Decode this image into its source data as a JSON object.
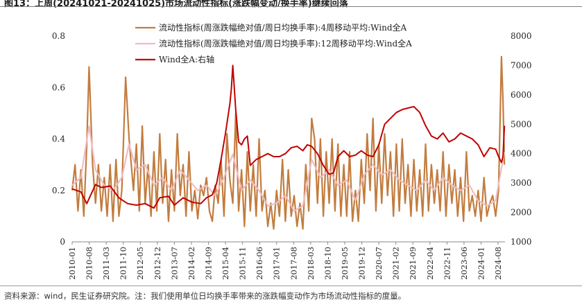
{
  "title": "图13：上周(20241021-20241025)市场流动性指标(涨跌幅变动/换手率)继续回落",
  "source": "资料来源：wind，民生证券研究院。注：我们使用单位日均换手率带来的涨跌幅变动作为市场流动性指标的度量。",
  "colors": {
    "ma4": "#c27c3e",
    "ma12": "#efbcc0",
    "wind": "#c00000"
  },
  "chart_data": {
    "type": "line",
    "legend": [
      "流动性指标(周涨跌幅绝对值/周日均换手率):4周移动平均:Wind全A",
      "流动性指标(周涨跌幅绝对值/周日均换手率):12周移动平均:Wind全A",
      "Wind全A:右轴"
    ],
    "legend_position": "top-center",
    "ylim_left": [
      0,
      0.8
    ],
    "yticks_left": [
      "0",
      "0.2",
      "0.4",
      "0.6",
      "0.8"
    ],
    "ylim_right": [
      1000,
      8000
    ],
    "yticks_right": [
      "1000",
      "2000",
      "3000",
      "4000",
      "5000",
      "6000",
      "7000",
      "8000"
    ],
    "x_ticks": [
      "2010-01",
      "2010-08",
      "2011-03",
      "2011-10",
      "2012-05",
      "2012-12",
      "2013-07",
      "2014-02",
      "2014-09",
      "2015-04",
      "2015-11",
      "2016-06",
      "2017-01",
      "2017-08",
      "2018-03",
      "2018-10",
      "2019-05",
      "2019-12",
      "2020-07",
      "2021-02",
      "2021-09",
      "2022-04",
      "2022-11",
      "2023-06",
      "2024-01",
      "2024-08"
    ],
    "x_range": [
      "2010-01",
      "2024-10"
    ],
    "grid": false,
    "series": [
      {
        "name": "流动性指标(周涨跌幅绝对值/周日均换手率):4周移动平均:Wind全A",
        "axis": "left",
        "x": [
          2010.0,
          2010.1,
          2010.2,
          2010.3,
          2010.4,
          2010.5,
          2010.58,
          2010.7,
          2010.8,
          2010.9,
          2011.0,
          2011.1,
          2011.2,
          2011.3,
          2011.4,
          2011.5,
          2011.6,
          2011.7,
          2011.83,
          2011.95,
          2012.1,
          2012.2,
          2012.3,
          2012.4,
          2012.5,
          2012.6,
          2012.7,
          2012.8,
          2012.9,
          2013.0,
          2013.1,
          2013.2,
          2013.3,
          2013.4,
          2013.5,
          2013.6,
          2013.7,
          2013.8,
          2013.9,
          2014.0,
          2014.1,
          2014.2,
          2014.3,
          2014.4,
          2014.5,
          2014.6,
          2014.7,
          2014.8,
          2014.9,
          2015.0,
          2015.1,
          2015.2,
          2015.3,
          2015.4,
          2015.5,
          2015.6,
          2015.7,
          2015.8,
          2015.9,
          2016.0,
          2016.1,
          2016.2,
          2016.3,
          2016.4,
          2016.5,
          2016.6,
          2016.7,
          2016.8,
          2016.9,
          2017.0,
          2017.1,
          2017.2,
          2017.3,
          2017.4,
          2017.5,
          2017.6,
          2017.7,
          2017.8,
          2017.9,
          2018.0,
          2018.1,
          2018.2,
          2018.3,
          2018.4,
          2018.5,
          2018.6,
          2018.7,
          2018.8,
          2018.9,
          2019.0,
          2019.1,
          2019.2,
          2019.3,
          2019.4,
          2019.5,
          2019.6,
          2019.7,
          2019.8,
          2019.9,
          2020.0,
          2020.1,
          2020.2,
          2020.3,
          2020.4,
          2020.5,
          2020.6,
          2020.7,
          2020.8,
          2020.9,
          2021.0,
          2021.1,
          2021.2,
          2021.3,
          2021.4,
          2021.5,
          2021.6,
          2021.7,
          2021.8,
          2021.9,
          2022.0,
          2022.1,
          2022.2,
          2022.3,
          2022.4,
          2022.5,
          2022.6,
          2022.7,
          2022.8,
          2022.9,
          2023.0,
          2023.1,
          2023.2,
          2023.3,
          2023.4,
          2023.5,
          2023.6,
          2023.7,
          2023.8,
          2023.9,
          2024.0,
          2024.1,
          2024.2,
          2024.3,
          2024.4,
          2024.5,
          2024.6,
          2024.7,
          2024.75,
          2024.8
        ],
        "values": [
          0.2,
          0.3,
          0.12,
          0.28,
          0.1,
          0.38,
          0.68,
          0.3,
          0.15,
          0.3,
          0.12,
          0.25,
          0.1,
          0.3,
          0.08,
          0.32,
          0.1,
          0.2,
          0.64,
          0.4,
          0.2,
          0.38,
          0.12,
          0.45,
          0.15,
          0.3,
          0.1,
          0.35,
          0.12,
          0.42,
          0.15,
          0.32,
          0.08,
          0.28,
          0.12,
          0.42,
          0.18,
          0.3,
          0.1,
          0.35,
          0.12,
          0.2,
          0.09,
          0.22,
          0.18,
          0.25,
          0.12,
          0.08,
          0.22,
          0.15,
          0.32,
          0.1,
          0.42,
          0.24,
          0.15,
          0.5,
          0.12,
          0.28,
          0.06,
          0.35,
          0.12,
          0.3,
          0.1,
          0.4,
          0.12,
          0.2,
          0.06,
          0.15,
          0.05,
          0.2,
          0.1,
          0.32,
          0.08,
          0.28,
          0.1,
          0.18,
          0.06,
          0.15,
          0.05,
          0.3,
          0.12,
          0.48,
          0.4,
          0.15,
          0.4,
          0.1,
          0.35,
          0.15,
          0.4,
          0.12,
          0.38,
          0.1,
          0.3,
          0.1,
          0.35,
          0.08,
          0.2,
          0.08,
          0.32,
          0.15,
          0.42,
          0.2,
          0.48,
          0.12,
          0.38,
          0.15,
          0.42,
          0.18,
          0.35,
          0.1,
          0.38,
          0.12,
          0.4,
          0.15,
          0.3,
          0.1,
          0.32,
          0.12,
          0.28,
          0.1,
          0.38,
          0.12,
          0.3,
          0.15,
          0.28,
          0.12,
          0.35,
          0.1,
          0.3,
          0.15,
          0.28,
          0.1,
          0.25,
          0.08,
          0.35,
          0.12,
          0.18,
          0.1,
          0.2,
          0.08,
          0.25,
          0.1,
          0.15,
          0.18,
          0.1,
          0.2,
          0.72,
          0.55,
          0.3
        ]
      },
      {
        "name": "流动性指标(周涨跌幅绝对值/周日均换手率):12周移动平均:Wind全A",
        "axis": "left",
        "x": [
          2010.0,
          2010.3,
          2010.58,
          2010.8,
          2011.1,
          2011.4,
          2011.7,
          2011.95,
          2012.2,
          2012.5,
          2012.8,
          2013.1,
          2013.4,
          2013.7,
          2014.0,
          2014.3,
          2014.6,
          2014.9,
          2015.2,
          2015.5,
          2015.8,
          2016.1,
          2016.4,
          2016.7,
          2017.0,
          2017.3,
          2017.6,
          2017.9,
          2018.2,
          2018.5,
          2018.8,
          2019.1,
          2019.4,
          2019.7,
          2020.0,
          2020.3,
          2020.6,
          2020.9,
          2021.2,
          2021.5,
          2021.8,
          2022.1,
          2022.4,
          2022.7,
          2023.0,
          2023.3,
          2023.6,
          2023.9,
          2024.2,
          2024.5,
          2024.8
        ],
        "values": [
          0.22,
          0.25,
          0.45,
          0.28,
          0.22,
          0.2,
          0.25,
          0.38,
          0.28,
          0.3,
          0.22,
          0.25,
          0.2,
          0.28,
          0.24,
          0.2,
          0.22,
          0.18,
          0.25,
          0.34,
          0.2,
          0.24,
          0.2,
          0.14,
          0.15,
          0.18,
          0.12,
          0.14,
          0.32,
          0.25,
          0.28,
          0.22,
          0.24,
          0.16,
          0.26,
          0.3,
          0.26,
          0.28,
          0.24,
          0.22,
          0.2,
          0.24,
          0.2,
          0.25,
          0.22,
          0.2,
          0.22,
          0.16,
          0.14,
          0.16,
          0.35
        ]
      },
      {
        "name": "Wind全A:右轴",
        "axis": "right",
        "x": [
          2010.0,
          2010.3,
          2010.5,
          2010.8,
          2011.0,
          2011.3,
          2011.6,
          2011.9,
          2012.2,
          2012.5,
          2012.8,
          2013.0,
          2013.3,
          2013.5,
          2013.8,
          2014.1,
          2014.4,
          2014.6,
          2014.8,
          2014.95,
          2015.1,
          2015.25,
          2015.4,
          2015.45,
          2015.5,
          2015.6,
          2015.7,
          2015.8,
          2015.9,
          2016.0,
          2016.1,
          2016.3,
          2016.5,
          2016.7,
          2016.9,
          2017.1,
          2017.3,
          2017.5,
          2017.7,
          2017.9,
          2018.05,
          2018.2,
          2018.4,
          2018.6,
          2018.8,
          2018.95,
          2019.1,
          2019.3,
          2019.5,
          2019.7,
          2019.9,
          2020.1,
          2020.3,
          2020.5,
          2020.7,
          2020.9,
          2021.1,
          2021.3,
          2021.5,
          2021.7,
          2021.9,
          2022.1,
          2022.3,
          2022.5,
          2022.7,
          2022.9,
          2023.1,
          2023.3,
          2023.5,
          2023.7,
          2023.9,
          2024.05,
          2024.1,
          2024.3,
          2024.5,
          2024.6,
          2024.7,
          2024.75,
          2024.8
        ],
        "values": [
          2800,
          2700,
          2300,
          2950,
          2850,
          2900,
          2500,
          2300,
          2250,
          2300,
          2150,
          2500,
          2550,
          2250,
          2500,
          2350,
          2300,
          2500,
          2600,
          3000,
          3800,
          4700,
          5700,
          6200,
          7000,
          5500,
          4400,
          4300,
          4500,
          4600,
          3600,
          3800,
          3900,
          4000,
          3900,
          3900,
          4000,
          4200,
          4250,
          4100,
          4300,
          4250,
          4000,
          3600,
          3300,
          3350,
          3900,
          4100,
          3900,
          3950,
          4100,
          3950,
          3900,
          4300,
          5000,
          5200,
          5400,
          5500,
          5550,
          5600,
          5400,
          4950,
          4600,
          4500,
          4700,
          4400,
          4500,
          4700,
          4600,
          4500,
          4300,
          4000,
          3900,
          4200,
          4150,
          3900,
          3700,
          3900,
          4950
        ]
      }
    ]
  }
}
